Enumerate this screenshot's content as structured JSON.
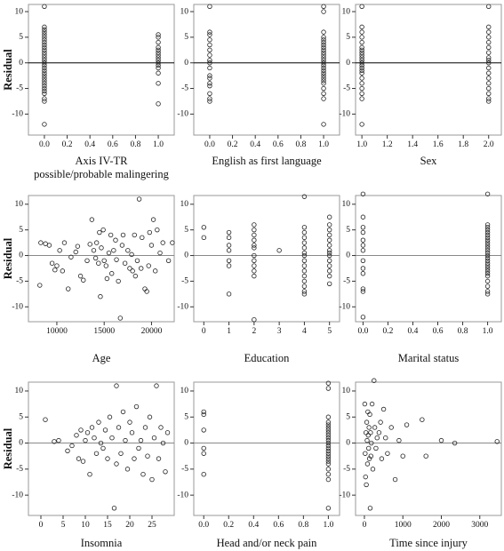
{
  "chart_data": [
    {
      "type": "scatter",
      "y_label": "Residual",
      "x_label": [
        "Axis IV-TR",
        "possible/probable malingering"
      ],
      "xlim": [
        -0.14,
        1.14
      ],
      "ylim": [
        -14.1,
        11.4
      ],
      "hline": 0,
      "hline_color": "#000000",
      "xticks": [
        {
          "value": 0,
          "label": "0.0"
        },
        {
          "value": 0.2,
          "label": "0.2"
        },
        {
          "value": 0.4,
          "label": "0.4"
        },
        {
          "value": 0.6,
          "label": "0.6"
        },
        {
          "value": 0.8,
          "label": "0.8"
        },
        {
          "value": 1,
          "label": "1.0"
        }
      ],
      "yticks": [
        10,
        5,
        0,
        -5,
        -10
      ],
      "x": [
        0,
        0,
        0,
        0,
        0,
        0,
        0,
        0,
        0,
        0,
        0,
        0,
        0,
        0,
        0,
        0,
        0,
        0,
        0,
        0,
        0,
        0,
        0,
        0,
        0,
        0,
        0,
        0,
        0,
        0,
        0,
        1,
        1,
        1,
        1,
        1,
        1,
        1,
        1,
        1,
        1,
        1,
        1,
        1,
        1,
        1
      ],
      "y": [
        11,
        7,
        6.5,
        6,
        5.5,
        5,
        4.5,
        4,
        3.5,
        3,
        2.5,
        2,
        1.5,
        1,
        0.5,
        0,
        -0.5,
        -1,
        -1.5,
        -2,
        -2.5,
        -3,
        -3.5,
        -4,
        -4.5,
        -5,
        -5.5,
        -6,
        -7,
        -7.5,
        -12,
        5.5,
        5,
        4,
        3,
        2.5,
        2,
        1.5,
        1,
        0.5,
        0,
        -0.5,
        -1,
        -2,
        -4,
        -8
      ]
    },
    {
      "type": "scatter",
      "x_label": [
        "English as first language"
      ],
      "xlim": [
        -0.14,
        1.14
      ],
      "ylim": [
        -14.1,
        11.4
      ],
      "hline": 0,
      "hline_color": "#000000",
      "xticks": [
        {
          "value": 0,
          "label": "0.0"
        },
        {
          "value": 0.2,
          "label": "0.2"
        },
        {
          "value": 0.4,
          "label": "0.4"
        },
        {
          "value": 0.6,
          "label": "0.6"
        },
        {
          "value": 0.8,
          "label": "0.8"
        },
        {
          "value": 1,
          "label": "1.0"
        }
      ],
      "yticks": [
        10,
        5,
        0,
        -5,
        -10
      ],
      "x": [
        0,
        0,
        0,
        0,
        0,
        0,
        0,
        0,
        0,
        0,
        0,
        0,
        0,
        0,
        0,
        0,
        0,
        1,
        1,
        1,
        1,
        1,
        1,
        1,
        1,
        1,
        1,
        1,
        1,
        1,
        1,
        1,
        1,
        1,
        1,
        1,
        1,
        1,
        1,
        1,
        1,
        1,
        1
      ],
      "y": [
        11,
        6,
        5.5,
        4.5,
        3.5,
        2.5,
        1.5,
        0.5,
        0,
        -1,
        -2.5,
        -3,
        -4,
        -4.5,
        -6,
        -7,
        -7.5,
        11,
        10,
        6,
        5,
        4.5,
        4,
        3.5,
        3,
        2.5,
        2,
        1.5,
        1,
        0.5,
        0,
        -0.5,
        -1,
        -1.5,
        -2,
        -2.5,
        -3,
        -3.5,
        -4,
        -5,
        -6,
        -7,
        -12
      ]
    },
    {
      "type": "scatter",
      "x_label": [
        "Sex"
      ],
      "xlim": [
        0.95,
        2.1
      ],
      "ylim": [
        -14.1,
        11.4
      ],
      "hline": 0,
      "hline_color": "#000000",
      "xticks": [
        {
          "value": 1,
          "label": "1.0"
        },
        {
          "value": 1.2,
          "label": "1.2"
        },
        {
          "value": 1.4,
          "label": "1.4"
        },
        {
          "value": 1.6,
          "label": "1.6"
        },
        {
          "value": 1.8,
          "label": "1.8"
        },
        {
          "value": 2,
          "label": "2.0"
        }
      ],
      "yticks": [
        10,
        5,
        0,
        -5,
        -10
      ],
      "x": [
        1,
        1,
        1,
        1,
        1,
        1,
        1,
        1,
        1,
        1,
        1,
        1,
        1,
        1,
        1,
        1,
        1,
        1,
        1,
        1,
        1,
        1,
        2,
        2,
        2,
        2,
        2,
        2,
        2,
        2,
        2,
        2,
        2,
        2,
        2,
        2,
        2,
        2,
        2,
        2
      ],
      "y": [
        11,
        7,
        6,
        5,
        4,
        3,
        2.5,
        2,
        1.5,
        1,
        0.5,
        0,
        -0.5,
        -1,
        -1.5,
        -2,
        -3,
        -4,
        -5,
        -6,
        -7,
        -12,
        11,
        7,
        6,
        5,
        4,
        3,
        2,
        1,
        0.5,
        0,
        -1,
        -2,
        -3,
        -4,
        -5,
        -6,
        -7,
        -7.5
      ]
    },
    {
      "type": "scatter",
      "y_label": "Residual",
      "x_label": [
        "Age"
      ],
      "xlim": [
        7000,
        22400
      ],
      "ylim": [
        -12.9,
        11.7
      ],
      "hline": 0,
      "hline_color": "#888888",
      "xticks": [
        10000,
        15000,
        20000
      ],
      "yticks": [
        10,
        5,
        0,
        -5,
        -10
      ],
      "x": [
        8200,
        8300,
        8800,
        9200,
        9500,
        9800,
        10000,
        10300,
        10600,
        10800,
        11200,
        11500,
        12000,
        12200,
        12500,
        12800,
        13200,
        13500,
        13700,
        13900,
        14100,
        14200,
        14400,
        14500,
        14600,
        14700,
        14900,
        15000,
        15200,
        15300,
        15500,
        15700,
        15800,
        16000,
        16200,
        16300,
        16500,
        16700,
        16900,
        17000,
        17200,
        17500,
        17700,
        17900,
        18000,
        18200,
        18300,
        18500,
        18700,
        18900,
        19000,
        19300,
        19500,
        19700,
        19800,
        20000,
        20200,
        20400,
        20600,
        20900,
        21200,
        21800,
        22200
      ],
      "y": [
        -5.8,
        2.5,
        2.3,
        2,
        -1.5,
        -2.8,
        -2,
        1,
        -3,
        2.5,
        -6.5,
        -0.3,
        0.7,
        1.8,
        -4,
        -4.8,
        -1,
        2.2,
        7,
        1,
        -0.5,
        2.5,
        -1.5,
        4.5,
        -8,
        1.5,
        5,
        -1,
        -2,
        -4.5,
        0.5,
        4,
        -3.5,
        1,
        3,
        -0.8,
        -5,
        -12.2,
        2,
        4,
        -1.5,
        1,
        -2.5,
        0.2,
        -3,
        4,
        -4,
        -1,
        11,
        -2.5,
        3.5,
        -6.5,
        -7,
        -2,
        4.5,
        2,
        7,
        -3,
        5,
        0.5,
        2.5,
        -1,
        2.5
      ]
    },
    {
      "type": "scatter",
      "x_label": [
        "Education"
      ],
      "xlim": [
        -0.4,
        5.4
      ],
      "ylim": [
        -12.9,
        11.7
      ],
      "hline": 0,
      "hline_color": "#888888",
      "xticks": [
        0,
        1,
        2,
        3,
        4,
        5
      ],
      "yticks": [
        10,
        5,
        0,
        -5,
        -10
      ],
      "x": [
        0,
        0,
        1,
        1,
        1,
        1,
        1,
        1,
        1,
        2,
        2,
        2,
        2,
        2,
        2,
        2,
        2,
        2,
        2,
        2,
        2,
        3,
        4,
        4,
        4,
        4,
        4,
        4,
        4,
        4,
        4,
        4,
        4,
        4,
        4,
        4,
        4,
        4,
        5,
        5,
        5,
        5,
        5,
        5,
        5,
        5,
        5,
        5,
        5,
        5,
        5,
        5
      ],
      "y": [
        5.5,
        3.5,
        4.5,
        3.5,
        2,
        1,
        -1,
        -2,
        -7.5,
        6,
        5,
        4,
        3,
        2,
        1.5,
        0,
        -1,
        -2,
        -3,
        -4,
        -12.5,
        1,
        11.5,
        5.5,
        4.5,
        3.5,
        2.5,
        1.5,
        0.5,
        0,
        -1,
        -2,
        -3,
        -4,
        -5,
        -6,
        -7,
        -7.5,
        7.5,
        6,
        5,
        4,
        3,
        2,
        1,
        0.5,
        0,
        -1,
        -2,
        -3,
        -4,
        -5.5
      ]
    },
    {
      "type": "scatter",
      "x_label": [
        "Marital status"
      ],
      "xlim": [
        -0.06,
        1.11
      ],
      "ylim": [
        -12.9,
        11.7
      ],
      "hline": 0,
      "hline_color": "#888888",
      "xticks": [
        {
          "value": 0,
          "label": "0.0"
        },
        {
          "value": 0.2,
          "label": "0.2"
        },
        {
          "value": 0.4,
          "label": "0.4"
        },
        {
          "value": 0.6,
          "label": "0.6"
        },
        {
          "value": 0.8,
          "label": "0.8"
        },
        {
          "value": 1,
          "label": "1.0"
        }
      ],
      "yticks": [
        10,
        5,
        0,
        -5,
        -10
      ],
      "x": [
        0,
        0,
        0,
        0,
        0,
        0,
        0,
        0,
        0,
        0,
        0,
        0,
        0,
        1,
        1,
        1,
        1,
        1,
        1,
        1,
        1,
        1,
        1,
        1,
        1,
        1,
        1,
        1,
        1,
        1,
        1,
        1,
        1,
        1,
        1,
        1,
        1,
        1,
        1
      ],
      "y": [
        12,
        7.5,
        5.5,
        4.5,
        3,
        2,
        1,
        -1,
        -2.5,
        -3.5,
        -6.5,
        -7,
        -12,
        12,
        6,
        5.5,
        5,
        4.5,
        4,
        3.5,
        3,
        2.5,
        2,
        1.5,
        1,
        0.5,
        0,
        -0.5,
        -1,
        -1.5,
        -2,
        -2.5,
        -3,
        -3.5,
        -4,
        -5,
        -6,
        -7,
        -7.5
      ]
    },
    {
      "type": "scatter",
      "y_label": "Residual",
      "x_label": [
        "Insomnia"
      ],
      "xlim": [
        -2.8,
        30
      ],
      "ylim": [
        -13.9,
        11.7
      ],
      "hline": 0,
      "hline_color": "#888888",
      "xticks": [
        0,
        5,
        10,
        15,
        20,
        25
      ],
      "yticks": [
        10,
        5,
        0,
        -5,
        -10
      ],
      "x": [
        1,
        3,
        4,
        6,
        7,
        8,
        8.5,
        9,
        9.5,
        10,
        10.5,
        11,
        11.5,
        12,
        12.5,
        13,
        13.5,
        14,
        14.5,
        15,
        15.5,
        16,
        16.5,
        17,
        17,
        17.5,
        18,
        18.5,
        19,
        19.5,
        20,
        20.5,
        21,
        21.5,
        22,
        22.5,
        23,
        23.5,
        24,
        24.5,
        25,
        25.5,
        26,
        26.5,
        27,
        27.5,
        28,
        28.5
      ],
      "y": [
        4.5,
        0.3,
        0.5,
        -1.5,
        -0.5,
        1.5,
        -3,
        2.5,
        -3.5,
        0.5,
        2,
        -6,
        3,
        1,
        -2,
        4,
        0,
        -1,
        2.5,
        -3,
        5,
        1,
        -12.5,
        11,
        -4,
        3,
        -2,
        6,
        0.5,
        -5,
        4,
        2,
        -3,
        7,
        -1,
        0.5,
        -6,
        3,
        -2.5,
        5,
        -7,
        1,
        11,
        -3,
        3,
        0,
        -5.5,
        2
      ]
    },
    {
      "type": "scatter",
      "x_label": [
        "Head and/or neck pain"
      ],
      "xlim": [
        -0.08,
        1.09
      ],
      "ylim": [
        -13.9,
        11.7
      ],
      "hline": 0,
      "hline_color": "#888888",
      "xticks": [
        {
          "value": 0,
          "label": "0.0"
        },
        {
          "value": 0.2,
          "label": "0.2"
        },
        {
          "value": 0.4,
          "label": "0.4"
        },
        {
          "value": 0.6,
          "label": "0.6"
        },
        {
          "value": 0.8,
          "label": "0.8"
        },
        {
          "value": 1,
          "label": "1.0"
        }
      ],
      "yticks": [
        10,
        5,
        0,
        -5,
        -10
      ],
      "x": [
        0,
        0,
        0,
        0,
        0,
        0,
        1,
        1,
        1,
        1,
        1,
        1,
        1,
        1,
        1,
        1,
        1,
        1,
        1,
        1,
        1,
        1,
        1,
        1,
        1,
        1,
        1,
        1,
        1,
        1
      ],
      "y": [
        6,
        5.5,
        2.5,
        -1,
        -2,
        -6,
        11.5,
        10.5,
        5,
        4,
        3.5,
        3,
        2.5,
        2,
        1.5,
        1,
        0.5,
        0,
        -0.5,
        -1,
        -1.5,
        -2,
        -2.5,
        -3,
        -3.5,
        -4,
        -5,
        -6,
        -7,
        -12.5
      ]
    },
    {
      "type": "scatter",
      "x_label": [
        "Time since injury"
      ],
      "xlim": [
        -230,
        3560
      ],
      "ylim": [
        -13.9,
        11.7
      ],
      "hline": 0,
      "hline_color": "#888888",
      "xticks": [
        0,
        1000,
        2000,
        3000
      ],
      "yticks": [
        10,
        5,
        0,
        -5,
        -10
      ],
      "x": [
        10,
        20,
        30,
        40,
        50,
        60,
        70,
        80,
        90,
        100,
        110,
        120,
        130,
        140,
        150,
        160,
        170,
        180,
        200,
        220,
        250,
        270,
        300,
        330,
        380,
        420,
        450,
        500,
        550,
        600,
        700,
        800,
        900,
        1000,
        1100,
        1500,
        1600,
        2000,
        2350,
        3450
      ],
      "y": [
        7.5,
        -2,
        -6.5,
        2,
        -8,
        4,
        0.5,
        -4,
        6,
        1.5,
        -1,
        3,
        -3,
        5.5,
        -12.5,
        2,
        -2.5,
        0,
        7.5,
        -5,
        12,
        3,
        -1,
        1,
        2,
        4,
        -3,
        6.5,
        1,
        -2,
        3,
        -7,
        0.5,
        -2.5,
        3.5,
        4.5,
        -2.5,
        0.5,
        0,
        0.3
      ]
    }
  ]
}
